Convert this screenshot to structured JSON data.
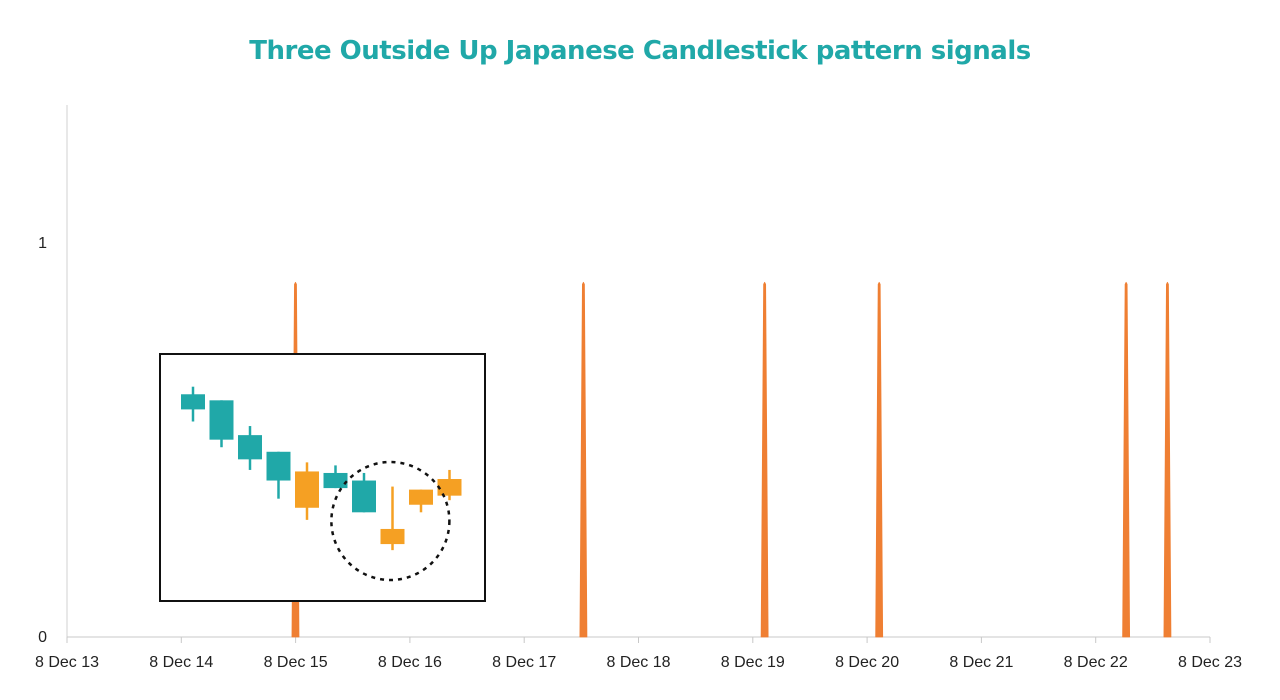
{
  "chart_data": {
    "type": "line",
    "title": "Three Outside Up Japanese Candlestick pattern signals",
    "xlabel": "",
    "ylabel": "",
    "x_ticks": [
      "8 Dec 13",
      "8 Dec 14",
      "8 Dec 15",
      "8 Dec 16",
      "8 Dec 17",
      "8 Dec 18",
      "8 Dec 19",
      "8 Dec 20",
      "8 Dec 21",
      "8 Dec 22",
      "8 Dec 23"
    ],
    "xlim": [
      "2013-12-08",
      "2023-12-08"
    ],
    "y_ticks": [
      "0",
      "1"
    ],
    "ylim": [
      0,
      1.35
    ],
    "grid": false,
    "series": [
      {
        "color": "#ef7f33",
        "signal_dates": [
          "2015-12-08",
          "2018-06-15",
          "2020-01-15",
          "2021-01-15",
          "2023-03-15",
          "2023-07-25"
        ],
        "signal_value": 0.9,
        "baseline_value": 0
      }
    ],
    "inset": {
      "description_icon": "candlestick-pattern-illustration",
      "bull_color": "#f5a023",
      "bear_color": "#20a8a8",
      "candles": [
        {
          "dir": "bear",
          "open": 8.5,
          "close": 8.0,
          "high": 8.75,
          "low": 7.6
        },
        {
          "dir": "bear",
          "open": 8.3,
          "close": 7.0,
          "high": 8.3,
          "low": 6.75
        },
        {
          "dir": "bear",
          "open": 7.15,
          "close": 6.35,
          "high": 7.45,
          "low": 6.0
        },
        {
          "dir": "bear",
          "open": 6.6,
          "close": 5.65,
          "high": 6.6,
          "low": 5.05
        },
        {
          "dir": "bull",
          "open": 4.75,
          "close": 5.95,
          "high": 6.25,
          "low": 4.35
        },
        {
          "dir": "bear",
          "open": 5.9,
          "close": 5.4,
          "high": 6.15,
          "low": 5.4
        },
        {
          "dir": "bear",
          "open": 5.65,
          "close": 4.6,
          "high": 5.9,
          "low": 4.6
        },
        {
          "dir": "bull",
          "open": 3.55,
          "close": 4.05,
          "high": 5.45,
          "low": 3.35
        },
        {
          "dir": "bull",
          "open": 4.85,
          "close": 5.35,
          "high": 5.35,
          "low": 4.6
        },
        {
          "dir": "bull",
          "open": 5.15,
          "close": 5.7,
          "high": 6.0,
          "low": 5.0
        }
      ],
      "highlight_circle": "dashed"
    }
  }
}
